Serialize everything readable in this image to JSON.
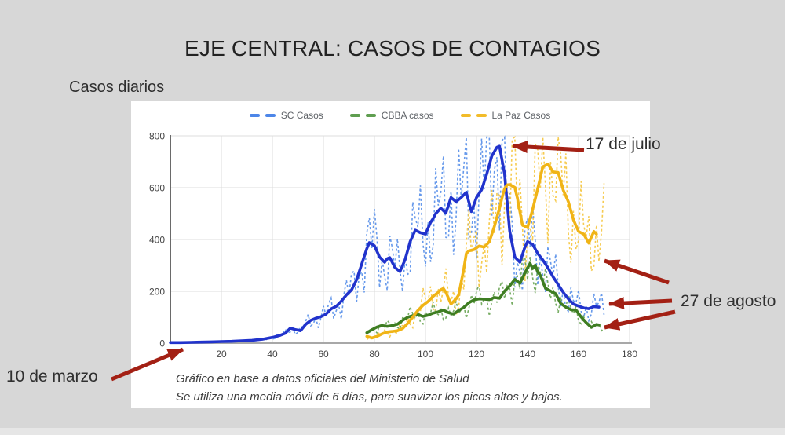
{
  "page": {
    "title": "EJE CENTRAL: CASOS DE CONTAGIOS",
    "caption": "Casos diarios"
  },
  "annotations": {
    "peak_label": "17 de julio",
    "end_label": "27 de agosto",
    "start_label": "10 de marzo"
  },
  "footer": {
    "line1": "Gráfico en base a datos oficiales del Ministerio de Salud",
    "line2": "Se utiliza una media móvil de 6 días, para suavizar los picos altos y bajos."
  },
  "colors": {
    "background": "#d7d7d7",
    "panel": "#ffffff",
    "bottom_strip": "#e6e6e6",
    "grid": "#dcdcdc",
    "axis_left": "#6a6a6a",
    "axis_bottom": "#a8a8a8",
    "axis_text": "#454545",
    "legend_text": "#5f6368",
    "arrow": "#a32014"
  },
  "chart_data": {
    "type": "line",
    "title": "",
    "xlabel": "",
    "ylabel": "",
    "xlim": [
      0,
      180
    ],
    "ylim": [
      0,
      800
    ],
    "xticks": [
      20,
      40,
      60,
      80,
      100,
      120,
      140,
      160,
      180
    ],
    "yticks": [
      0,
      200,
      400,
      600,
      800
    ],
    "grid": true,
    "legend_position": "top",
    "note": "solid = media móvil de 6 días; dashed = casos diarios",
    "series": [
      {
        "name": "SC Casos",
        "color": "#2133cc",
        "dashed_color": "#5e93ea",
        "legend_color": "#4d86e8",
        "daily_days": [
          37,
          170
        ],
        "daily_noise_ratio": 0.5,
        "noise_phase": 0.0,
        "avg_points": [
          [
            0,
            2
          ],
          [
            4,
            2
          ],
          [
            8,
            3
          ],
          [
            12,
            4
          ],
          [
            16,
            5
          ],
          [
            20,
            6
          ],
          [
            24,
            7
          ],
          [
            28,
            9
          ],
          [
            32,
            11
          ],
          [
            36,
            15
          ],
          [
            40,
            22
          ],
          [
            43,
            30
          ],
          [
            45,
            38
          ],
          [
            47,
            58
          ],
          [
            49,
            52
          ],
          [
            51,
            48
          ],
          [
            53,
            72
          ],
          [
            55,
            88
          ],
          [
            57,
            96
          ],
          [
            59,
            102
          ],
          [
            61,
            112
          ],
          [
            63,
            132
          ],
          [
            65,
            142
          ],
          [
            67,
            162
          ],
          [
            69,
            186
          ],
          [
            71,
            205
          ],
          [
            73,
            245
          ],
          [
            75,
            305
          ],
          [
            77,
            365
          ],
          [
            78,
            388
          ],
          [
            80,
            376
          ],
          [
            82,
            332
          ],
          [
            84,
            312
          ],
          [
            85,
            326
          ],
          [
            86,
            330
          ],
          [
            88,
            292
          ],
          [
            90,
            276
          ],
          [
            92,
            322
          ],
          [
            94,
            392
          ],
          [
            96,
            436
          ],
          [
            98,
            426
          ],
          [
            100,
            421
          ],
          [
            102,
            466
          ],
          [
            103,
            481
          ],
          [
            104,
            500
          ],
          [
            106,
            521
          ],
          [
            108,
            502
          ],
          [
            110,
            562
          ],
          [
            112,
            546
          ],
          [
            114,
            562
          ],
          [
            116,
            582
          ],
          [
            118,
            508
          ],
          [
            120,
            562
          ],
          [
            122,
            592
          ],
          [
            124,
            652
          ],
          [
            126,
            722
          ],
          [
            128,
            756
          ],
          [
            129,
            760
          ],
          [
            131,
            652
          ],
          [
            133,
            432
          ],
          [
            135,
            332
          ],
          [
            137,
            312
          ],
          [
            139,
            372
          ],
          [
            140,
            392
          ],
          [
            142,
            381
          ],
          [
            144,
            346
          ],
          [
            146,
            321
          ],
          [
            148,
            291
          ],
          [
            150,
            256
          ],
          [
            152,
            226
          ],
          [
            154,
            196
          ],
          [
            156,
            171
          ],
          [
            158,
            151
          ],
          [
            160,
            143
          ],
          [
            162,
            136
          ],
          [
            164,
            133
          ],
          [
            166,
            141
          ],
          [
            168,
            139
          ]
        ]
      },
      {
        "name": "CBBA casos",
        "color": "#3e7d22",
        "dashed_color": "#6fa85a",
        "legend_color": "#5f9e50",
        "daily_days": [
          77,
          170
        ],
        "daily_noise_ratio": 0.38,
        "noise_phase": 2.1,
        "avg_points": [
          [
            77,
            40
          ],
          [
            79,
            52
          ],
          [
            81,
            62
          ],
          [
            83,
            68
          ],
          [
            85,
            65
          ],
          [
            87,
            68
          ],
          [
            89,
            73
          ],
          [
            91,
            88
          ],
          [
            93,
            100
          ],
          [
            95,
            106
          ],
          [
            97,
            111
          ],
          [
            99,
            103
          ],
          [
            101,
            108
          ],
          [
            103,
            116
          ],
          [
            105,
            121
          ],
          [
            107,
            128
          ],
          [
            109,
            118
          ],
          [
            111,
            112
          ],
          [
            113,
            126
          ],
          [
            115,
            138
          ],
          [
            117,
            156
          ],
          [
            119,
            167
          ],
          [
            121,
            171
          ],
          [
            123,
            170
          ],
          [
            125,
            168
          ],
          [
            127,
            176
          ],
          [
            129,
            173
          ],
          [
            131,
            201
          ],
          [
            133,
            221
          ],
          [
            135,
            246
          ],
          [
            137,
            231
          ],
          [
            139,
            272
          ],
          [
            141,
            308
          ],
          [
            142,
            288
          ],
          [
            143,
            301
          ],
          [
            144,
            274
          ],
          [
            145,
            262
          ],
          [
            147,
            212
          ],
          [
            149,
            201
          ],
          [
            151,
            191
          ],
          [
            153,
            153
          ],
          [
            155,
            139
          ],
          [
            157,
            129
          ],
          [
            159,
            128
          ],
          [
            161,
            101
          ],
          [
            163,
            79
          ],
          [
            165,
            61
          ],
          [
            167,
            72
          ],
          [
            168,
            70
          ]
        ]
      },
      {
        "name": "La Paz Casos",
        "color": "#f0b416",
        "dashed_color": "#f5c847",
        "legend_color": "#f2bc2a",
        "daily_days": [
          77,
          170
        ],
        "daily_noise_ratio": 0.5,
        "noise_phase": 4.2,
        "avg_points": [
          [
            77,
            26
          ],
          [
            79,
            20
          ],
          [
            81,
            26
          ],
          [
            83,
            36
          ],
          [
            85,
            43
          ],
          [
            87,
            45
          ],
          [
            89,
            48
          ],
          [
            91,
            56
          ],
          [
            93,
            76
          ],
          [
            95,
            101
          ],
          [
            97,
            126
          ],
          [
            99,
            146
          ],
          [
            101,
            161
          ],
          [
            103,
            181
          ],
          [
            105,
            196
          ],
          [
            106,
            206
          ],
          [
            107,
            211
          ],
          [
            108,
            196
          ],
          [
            110,
            151
          ],
          [
            112,
            171
          ],
          [
            113,
            186
          ],
          [
            115,
            286
          ],
          [
            116,
            346
          ],
          [
            117,
            356
          ],
          [
            119,
            361
          ],
          [
            121,
            375
          ],
          [
            123,
            371
          ],
          [
            125,
            391
          ],
          [
            127,
            451
          ],
          [
            129,
            521
          ],
          [
            130,
            561
          ],
          [
            131,
            596
          ],
          [
            132,
            611
          ],
          [
            133,
            612
          ],
          [
            135,
            601
          ],
          [
            136,
            561
          ],
          [
            138,
            456
          ],
          [
            140,
            446
          ],
          [
            142,
            516
          ],
          [
            144,
            596
          ],
          [
            146,
            681
          ],
          [
            148,
            691
          ],
          [
            150,
            661
          ],
          [
            152,
            659
          ],
          [
            154,
            591
          ],
          [
            156,
            546
          ],
          [
            158,
            476
          ],
          [
            160,
            431
          ],
          [
            162,
            421
          ],
          [
            164,
            386
          ],
          [
            166,
            431
          ],
          [
            167,
            421
          ]
        ]
      }
    ]
  }
}
